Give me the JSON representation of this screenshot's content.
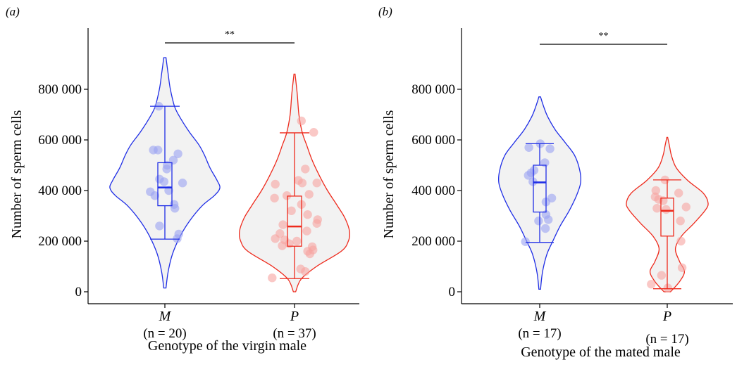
{
  "colors": {
    "M": "#1f2ee6",
    "P": "#ee2a1c",
    "violin_fill": "#f2f2f2",
    "M_point": "#9aa2f2",
    "P_point": "#f6a3a0"
  },
  "chart_data": [
    {
      "type": "violin",
      "panel_label": "(a)",
      "ylabel": "Number of sperm cells",
      "xlabel": "Genotype of the virgin male",
      "ylim": [
        0,
        950000
      ],
      "yticks": [
        0,
        200000,
        400000,
        600000,
        800000
      ],
      "ytick_labels": [
        "0",
        "200 000",
        "400 000",
        "600 000",
        "800 000"
      ],
      "significance": "**",
      "groups": [
        {
          "name": "M",
          "n_label": "(n = 20)",
          "color_key": "M",
          "violin_range": [
            15000,
            925000
          ],
          "box": {
            "q1": 340000,
            "median": 412000,
            "q3": 510000,
            "whisker_low": 208000,
            "whisker_high": 733000
          },
          "density": [
            [
              15000,
              0.02
            ],
            [
              80000,
              0.06
            ],
            [
              150000,
              0.14
            ],
            [
              220000,
              0.28
            ],
            [
              280000,
              0.45
            ],
            [
              340000,
              0.68
            ],
            [
              380000,
              0.9
            ],
            [
              410000,
              1.0
            ],
            [
              440000,
              0.95
            ],
            [
              490000,
              0.82
            ],
            [
              540000,
              0.72
            ],
            [
              580000,
              0.62
            ],
            [
              630000,
              0.45
            ],
            [
              680000,
              0.3
            ],
            [
              730000,
              0.18
            ],
            [
              800000,
              0.1
            ],
            [
              860000,
              0.06
            ],
            [
              925000,
              0.02
            ]
          ],
          "points": [
            {
              "value": 733000,
              "jitter": -0.16
            },
            {
              "value": 560000,
              "jitter": -0.3
            },
            {
              "value": 560000,
              "jitter": -0.18
            },
            {
              "value": 545000,
              "jitter": 0.34
            },
            {
              "value": 520000,
              "jitter": 0.22
            },
            {
              "value": 500000,
              "jitter": 0.06
            },
            {
              "value": 485000,
              "jitter": 0.05
            },
            {
              "value": 445000,
              "jitter": -0.14
            },
            {
              "value": 435000,
              "jitter": -0.02
            },
            {
              "value": 430000,
              "jitter": 0.46
            },
            {
              "value": 400000,
              "jitter": 0.1
            },
            {
              "value": 395000,
              "jitter": -0.38
            },
            {
              "value": 380000,
              "jitter": -0.26
            },
            {
              "value": 345000,
              "jitter": 0.24
            },
            {
              "value": 330000,
              "jitter": 0.26
            },
            {
              "value": 260000,
              "jitter": -0.14
            },
            {
              "value": 228000,
              "jitter": 0.36
            },
            {
              "value": 210000,
              "jitter": 0.32
            }
          ]
        },
        {
          "name": "P",
          "n_label": "(n = 37)",
          "color_key": "P",
          "violin_range": [
            0,
            860000
          ],
          "box": {
            "q1": 180000,
            "median": 258000,
            "q3": 378000,
            "whisker_low": 52000,
            "whisker_high": 628000
          },
          "density": [
            [
              0,
              0.02
            ],
            [
              50000,
              0.12
            ],
            [
              100000,
              0.4
            ],
            [
              160000,
              0.85
            ],
            [
              200000,
              0.98
            ],
            [
              240000,
              1.0
            ],
            [
              290000,
              0.92
            ],
            [
              340000,
              0.78
            ],
            [
              400000,
              0.6
            ],
            [
              460000,
              0.45
            ],
            [
              520000,
              0.32
            ],
            [
              580000,
              0.22
            ],
            [
              630000,
              0.14
            ],
            [
              700000,
              0.08
            ],
            [
              780000,
              0.05
            ],
            [
              860000,
              0.01
            ]
          ],
          "points": [
            {
              "value": 675000,
              "jitter": 0.18
            },
            {
              "value": 630000,
              "jitter": 0.5
            },
            {
              "value": 485000,
              "jitter": 0.28
            },
            {
              "value": 440000,
              "jitter": 0.1
            },
            {
              "value": 430000,
              "jitter": 0.2
            },
            {
              "value": 430000,
              "jitter": 0.58
            },
            {
              "value": 425000,
              "jitter": -0.5
            },
            {
              "value": 385000,
              "jitter": 0.38
            },
            {
              "value": 380000,
              "jitter": -0.2
            },
            {
              "value": 370000,
              "jitter": -0.52
            },
            {
              "value": 345000,
              "jitter": 0.18
            },
            {
              "value": 320000,
              "jitter": -0.08
            },
            {
              "value": 305000,
              "jitter": 0.34
            },
            {
              "value": 285000,
              "jitter": 0.6
            },
            {
              "value": 270000,
              "jitter": 0.58
            },
            {
              "value": 265000,
              "jitter": -0.3
            },
            {
              "value": 240000,
              "jitter": 0.32
            },
            {
              "value": 230000,
              "jitter": -0.38
            },
            {
              "value": 210000,
              "jitter": -0.5
            },
            {
              "value": 205000,
              "jitter": -0.26
            },
            {
              "value": 200000,
              "jitter": 0.06
            },
            {
              "value": 190000,
              "jitter": -0.14
            },
            {
              "value": 182000,
              "jitter": -0.32
            },
            {
              "value": 178000,
              "jitter": 0.46
            },
            {
              "value": 165000,
              "jitter": 0.48
            },
            {
              "value": 160000,
              "jitter": 0.34
            },
            {
              "value": 150000,
              "jitter": 0.4
            },
            {
              "value": 90000,
              "jitter": 0.16
            },
            {
              "value": 80000,
              "jitter": 0.28
            },
            {
              "value": 55000,
              "jitter": -0.58
            }
          ]
        }
      ]
    },
    {
      "type": "violin",
      "panel_label": "(b)",
      "ylabel": "Number of sperm cells",
      "xlabel": "Genotype of the mated male",
      "ylim": [
        0,
        950000
      ],
      "yticks": [
        0,
        200000,
        400000,
        600000,
        800000
      ],
      "ytick_labels": [
        "0",
        "200 000",
        "400 000",
        "600 000",
        "800 000"
      ],
      "significance": "**",
      "groups": [
        {
          "name": "M",
          "n_label": "(n = 17)",
          "color_key": "M",
          "violin_range": [
            10000,
            770000
          ],
          "box": {
            "q1": 315000,
            "median": 432000,
            "q3": 500000,
            "whisker_low": 195000,
            "whisker_high": 585000
          },
          "density": [
            [
              10000,
              0.02
            ],
            [
              80000,
              0.07
            ],
            [
              150000,
              0.18
            ],
            [
              200000,
              0.32
            ],
            [
              260000,
              0.5
            ],
            [
              320000,
              0.72
            ],
            [
              380000,
              0.9
            ],
            [
              430000,
              1.0
            ],
            [
              480000,
              0.98
            ],
            [
              540000,
              0.85
            ],
            [
              590000,
              0.62
            ],
            [
              640000,
              0.38
            ],
            [
              690000,
              0.2
            ],
            [
              730000,
              0.1
            ],
            [
              770000,
              0.02
            ]
          ],
          "points": [
            {
              "value": 585000,
              "jitter": 0.02
            },
            {
              "value": 570000,
              "jitter": -0.38
            },
            {
              "value": 565000,
              "jitter": 0.36
            },
            {
              "value": 510000,
              "jitter": 0.18
            },
            {
              "value": 480000,
              "jitter": -0.2
            },
            {
              "value": 470000,
              "jitter": -0.3
            },
            {
              "value": 460000,
              "jitter": -0.4
            },
            {
              "value": 435000,
              "jitter": -0.24
            },
            {
              "value": 370000,
              "jitter": 0.42
            },
            {
              "value": 355000,
              "jitter": 0.22
            },
            {
              "value": 305000,
              "jitter": 0.22
            },
            {
              "value": 285000,
              "jitter": 0.3
            },
            {
              "value": 280000,
              "jitter": -0.04
            },
            {
              "value": 250000,
              "jitter": 0.2
            },
            {
              "value": 198000,
              "jitter": -0.5
            }
          ]
        },
        {
          "name": "P",
          "n_label": "(n = 17)",
          "color_key": "P",
          "violin_range": [
            0,
            610000
          ],
          "box": {
            "q1": 220000,
            "median": 320000,
            "q3": 370000,
            "whisker_low": 12000,
            "whisker_high": 442000
          },
          "density": [
            [
              0,
              0.08
            ],
            [
              40000,
              0.3
            ],
            [
              80000,
              0.42
            ],
            [
              120000,
              0.3
            ],
            [
              170000,
              0.2
            ],
            [
              220000,
              0.35
            ],
            [
              270000,
              0.65
            ],
            [
              320000,
              0.92
            ],
            [
              350000,
              1.0
            ],
            [
              390000,
              0.88
            ],
            [
              440000,
              0.5
            ],
            [
              490000,
              0.22
            ],
            [
              540000,
              0.1
            ],
            [
              580000,
              0.05
            ],
            [
              610000,
              0.01
            ]
          ],
          "points": [
            {
              "value": 442000,
              "jitter": -0.08
            },
            {
              "value": 400000,
              "jitter": -0.4
            },
            {
              "value": 390000,
              "jitter": 0.4
            },
            {
              "value": 375000,
              "jitter": -0.42
            },
            {
              "value": 365000,
              "jitter": -0.3
            },
            {
              "value": 360000,
              "jitter": -0.14
            },
            {
              "value": 335000,
              "jitter": 0.66
            },
            {
              "value": 330000,
              "jitter": -0.36
            },
            {
              "value": 325000,
              "jitter": -0.04
            },
            {
              "value": 280000,
              "jitter": 0.46
            },
            {
              "value": 200000,
              "jitter": 0.48
            },
            {
              "value": 95000,
              "jitter": 0.52
            },
            {
              "value": 65000,
              "jitter": -0.2
            },
            {
              "value": 30000,
              "jitter": -0.56
            },
            {
              "value": 15000,
              "jitter": 0.02
            }
          ]
        }
      ]
    }
  ]
}
